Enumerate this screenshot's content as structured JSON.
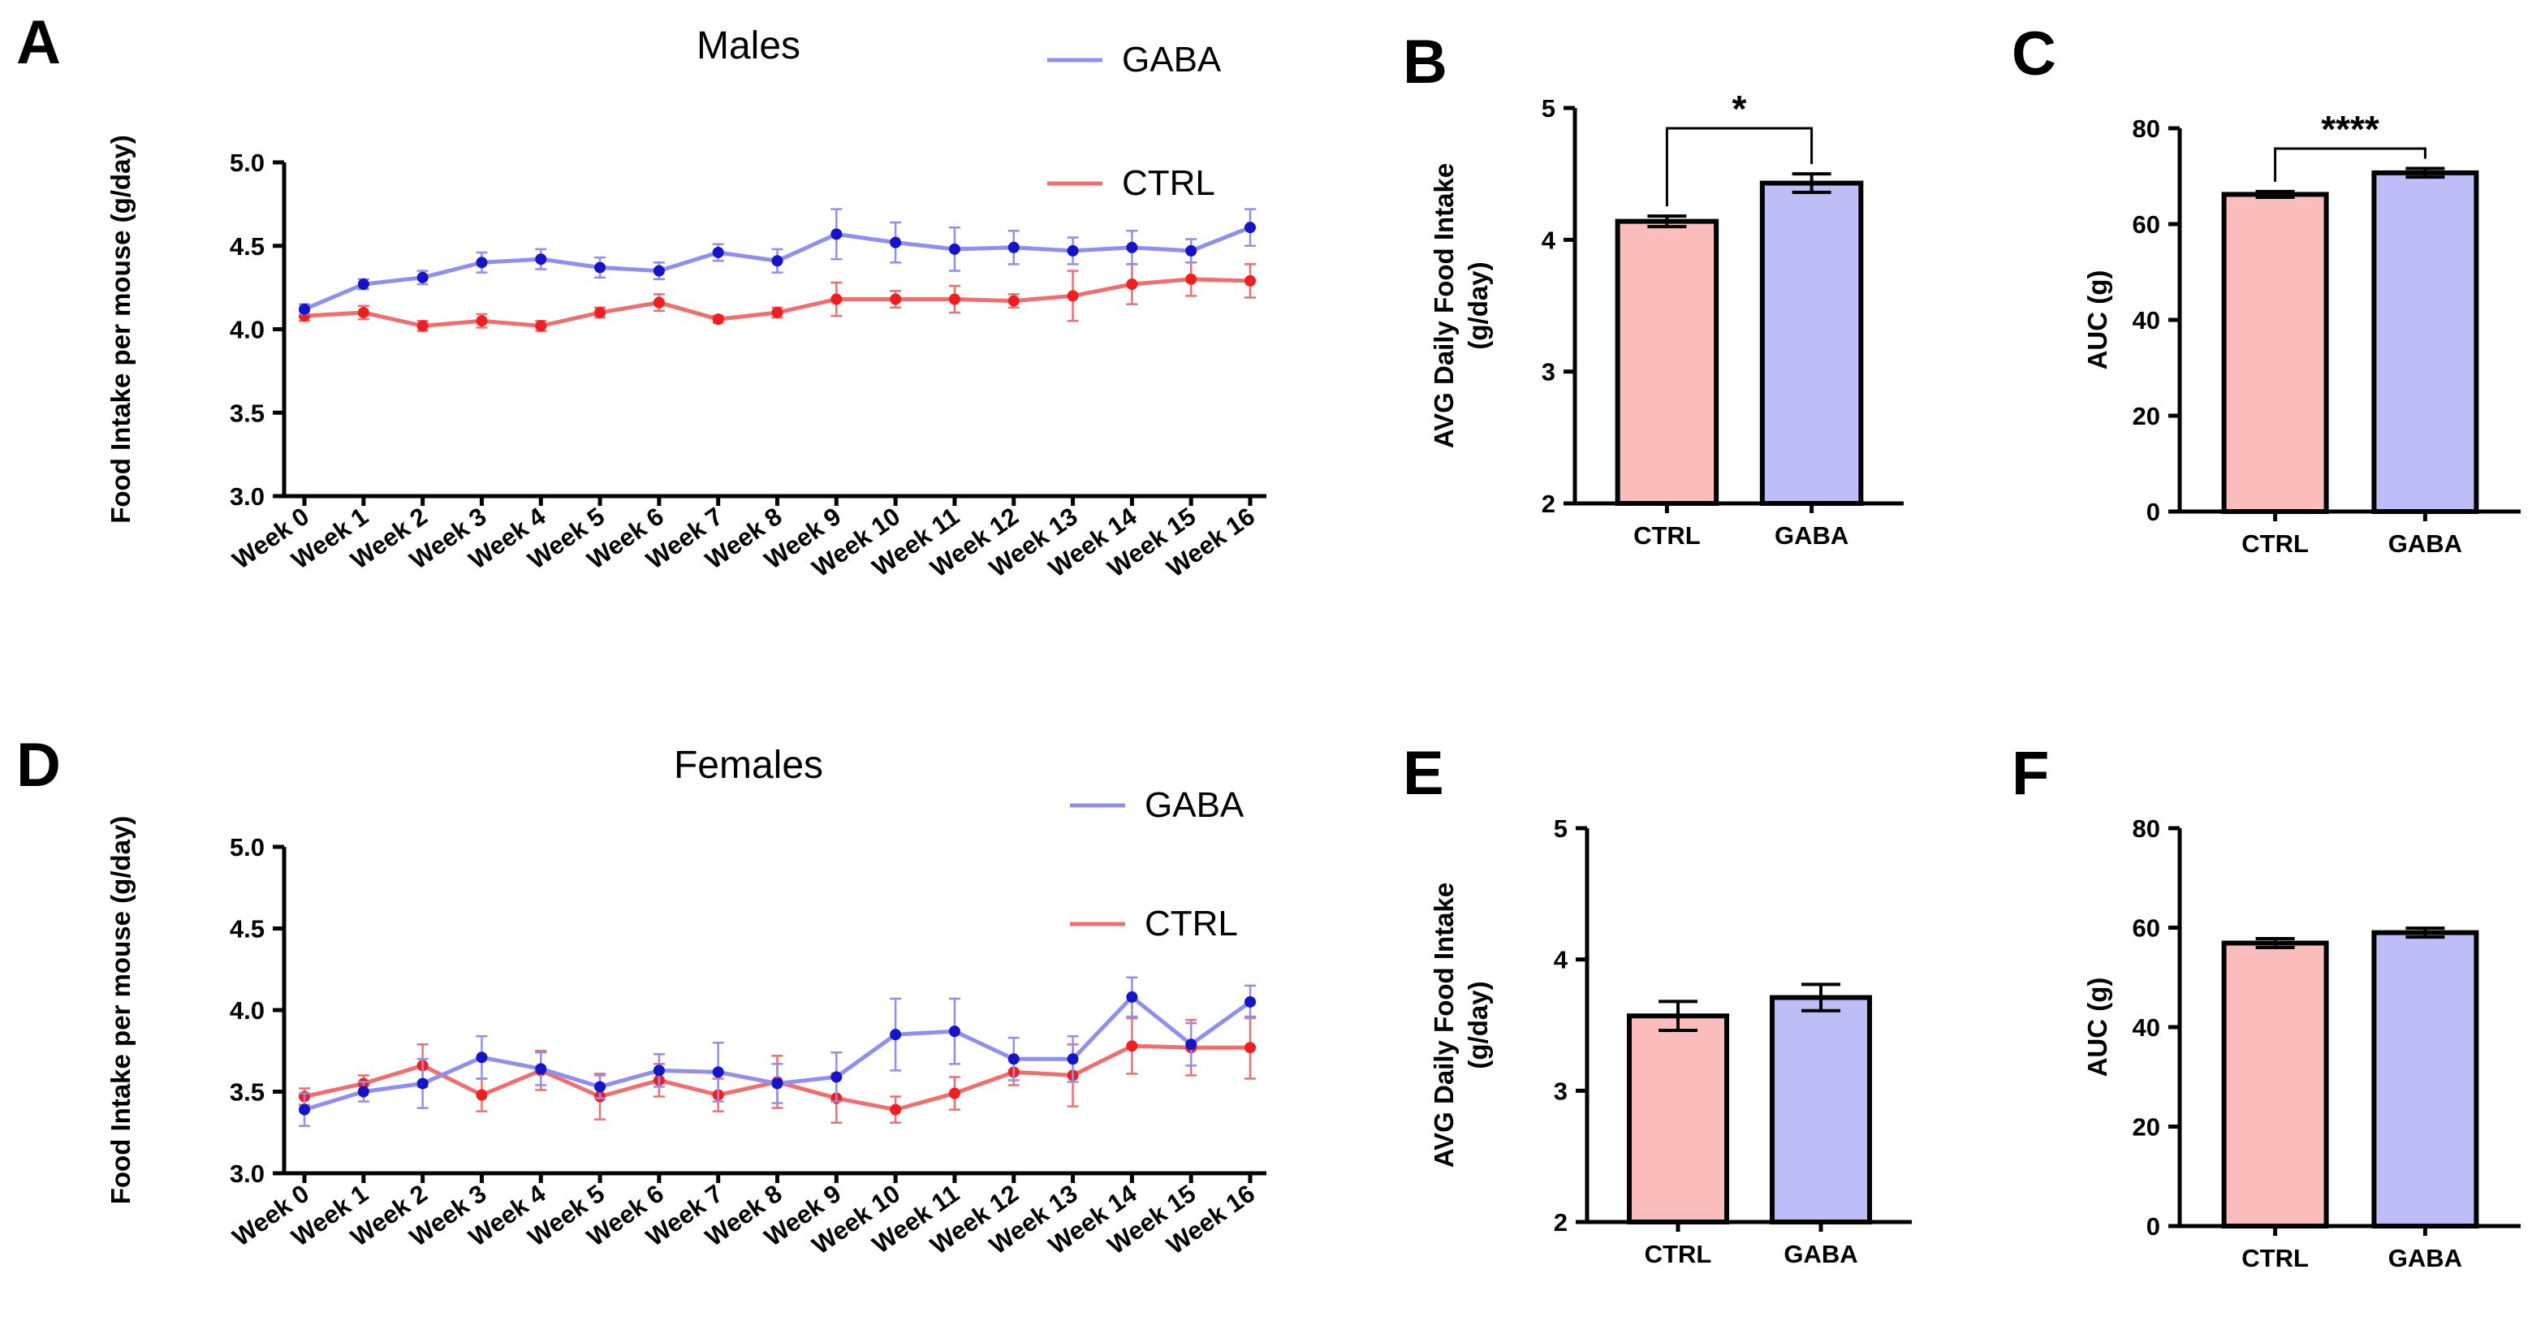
{
  "chart_data": [
    {
      "panel": "A",
      "type": "line",
      "title": "Males",
      "ylabel": "Food Intake per mouse (g/day)",
      "xlabel": "",
      "ylim": [
        3.0,
        5.0
      ],
      "yticks": [
        "3.0",
        "3.5",
        "4.0",
        "4.5",
        "5.0"
      ],
      "categories": [
        "Week 0",
        "Week 1",
        "Week 2",
        "Week 3",
        "Week 4",
        "Week 5",
        "Week 6",
        "Week 7",
        "Week 8",
        "Week 9",
        "Week 10",
        "Week 11",
        "Week 12",
        "Week 13",
        "Week 14",
        "Week 15",
        "Week 16"
      ],
      "series": [
        {
          "name": "GABA",
          "line_color": "#8f8ff0",
          "marker_color": "#1414c8",
          "values": [
            4.12,
            4.27,
            4.31,
            4.4,
            4.42,
            4.37,
            4.35,
            4.46,
            4.41,
            4.57,
            4.52,
            4.48,
            4.49,
            4.47,
            4.49,
            4.47,
            4.61
          ],
          "errors": [
            0.03,
            0.03,
            0.04,
            0.06,
            0.06,
            0.06,
            0.05,
            0.05,
            0.07,
            0.15,
            0.12,
            0.13,
            0.1,
            0.08,
            0.1,
            0.07,
            0.11
          ]
        },
        {
          "name": "CTRL",
          "line_color": "#f06e6e",
          "marker_color": "#f01e1e",
          "values": [
            4.08,
            4.1,
            4.02,
            4.05,
            4.02,
            4.1,
            4.16,
            4.06,
            4.1,
            4.18,
            4.18,
            4.18,
            4.17,
            4.2,
            4.27,
            4.3,
            4.29
          ],
          "errors": [
            0.03,
            0.04,
            0.03,
            0.04,
            0.03,
            0.03,
            0.05,
            0.02,
            0.03,
            0.1,
            0.05,
            0.08,
            0.04,
            0.15,
            0.12,
            0.1,
            0.1
          ]
        }
      ],
      "legend": [
        "GABA",
        "CTRL"
      ]
    },
    {
      "panel": "B",
      "type": "bar",
      "ylabel_lines": [
        "AVG Daily Food Intake",
        "(g/day)"
      ],
      "ylim": [
        2,
        5
      ],
      "yticks": [
        "2",
        "3",
        "4",
        "5"
      ],
      "categories": [
        "CTRL",
        "GABA"
      ],
      "values": [
        4.14,
        4.43
      ],
      "errors": [
        0.04,
        0.07
      ],
      "colors": [
        "#fbbcbc",
        "#bdbdf8"
      ],
      "significance": "*"
    },
    {
      "panel": "C",
      "type": "bar",
      "ylabel_lines": [
        "AUC (g)"
      ],
      "ylim": [
        0,
        80
      ],
      "yticks": [
        "0",
        "20",
        "40",
        "60",
        "80"
      ],
      "categories": [
        "CTRL",
        "GABA"
      ],
      "values": [
        66.2,
        70.7
      ],
      "errors": [
        0.6,
        0.9
      ],
      "colors": [
        "#fbbcbc",
        "#bdbdf8"
      ],
      "significance": "****"
    },
    {
      "panel": "D",
      "type": "line",
      "title": "Females",
      "ylabel": "Food Intake per mouse (g/day)",
      "xlabel": "",
      "ylim": [
        3.0,
        5.0
      ],
      "yticks": [
        "3.0",
        "3.5",
        "4.0",
        "4.5",
        "5.0"
      ],
      "categories": [
        "Week 0",
        "Week 1",
        "Week 2",
        "Week 3",
        "Week 4",
        "Week 5",
        "Week 6",
        "Week 7",
        "Week 8",
        "Week 9",
        "Week 10",
        "Week 11",
        "Week 12",
        "Week 13",
        "Week 14",
        "Week 15",
        "Week 16"
      ],
      "series": [
        {
          "name": "GABA",
          "line_color": "#8f8ff0",
          "marker_color": "#1414c8",
          "values": [
            3.39,
            3.5,
            3.55,
            3.71,
            3.64,
            3.53,
            3.63,
            3.62,
            3.55,
            3.59,
            3.85,
            3.87,
            3.7,
            3.7,
            4.08,
            3.79,
            4.05
          ],
          "errors": [
            0.1,
            0.06,
            0.15,
            0.13,
            0.1,
            0.07,
            0.1,
            0.18,
            0.12,
            0.15,
            0.22,
            0.2,
            0.13,
            0.14,
            0.12,
            0.13,
            0.1
          ]
        },
        {
          "name": "CTRL",
          "line_color": "#f06e6e",
          "marker_color": "#f01e1e",
          "values": [
            3.47,
            3.55,
            3.66,
            3.48,
            3.63,
            3.47,
            3.57,
            3.48,
            3.56,
            3.46,
            3.39,
            3.49,
            3.62,
            3.6,
            3.78,
            3.77,
            3.77
          ],
          "errors": [
            0.05,
            0.05,
            0.13,
            0.1,
            0.12,
            0.14,
            0.1,
            0.1,
            0.16,
            0.15,
            0.08,
            0.1,
            0.08,
            0.19,
            0.17,
            0.17,
            0.19
          ]
        }
      ],
      "legend": [
        "GABA",
        "CTRL"
      ]
    },
    {
      "panel": "E",
      "type": "bar",
      "ylabel_lines": [
        "AVG Daily Food Intake",
        "(g/day)"
      ],
      "ylim": [
        2,
        5
      ],
      "yticks": [
        "2",
        "3",
        "4",
        "5"
      ],
      "categories": [
        "CTRL",
        "GABA"
      ],
      "values": [
        3.57,
        3.71
      ],
      "errors": [
        0.11,
        0.1
      ],
      "colors": [
        "#fbbcbc",
        "#bdbdf8"
      ],
      "significance": ""
    },
    {
      "panel": "F",
      "type": "bar",
      "ylabel_lines": [
        "AUC (g)"
      ],
      "ylim": [
        0,
        80
      ],
      "yticks": [
        "0",
        "20",
        "40",
        "60",
        "80"
      ],
      "categories": [
        "CTRL",
        "GABA"
      ],
      "values": [
        56.9,
        59.0
      ],
      "errors": [
        0.9,
        0.9
      ],
      "colors": [
        "#fbbcbc",
        "#bdbdf8"
      ],
      "significance": ""
    }
  ]
}
